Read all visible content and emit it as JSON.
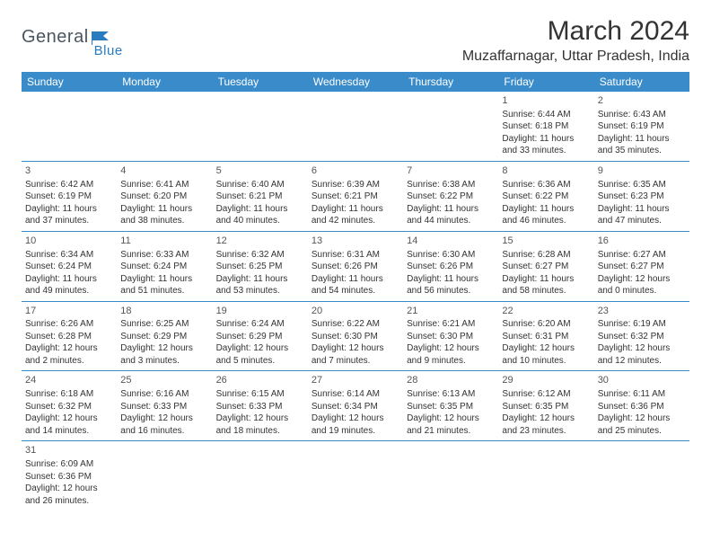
{
  "logo": {
    "text1": "General",
    "text2": "Blue"
  },
  "title": "March 2024",
  "location": "Muzaffarnagar, Uttar Pradesh, India",
  "colors": {
    "header_bg": "#3a8bc9",
    "header_text": "#ffffff",
    "border": "#3a8bc9",
    "logo_gray": "#4a5560",
    "logo_blue": "#2b7bbf",
    "text": "#333333",
    "background": "#ffffff"
  },
  "typography": {
    "title_fontsize": 30,
    "location_fontsize": 16,
    "dayheader_fontsize": 12,
    "cell_fontsize": 10
  },
  "day_headers": [
    "Sunday",
    "Monday",
    "Tuesday",
    "Wednesday",
    "Thursday",
    "Friday",
    "Saturday"
  ],
  "weeks": [
    [
      null,
      null,
      null,
      null,
      null,
      {
        "n": "1",
        "sunrise": "Sunrise: 6:44 AM",
        "sunset": "Sunset: 6:18 PM",
        "day1": "Daylight: 11 hours",
        "day2": "and 33 minutes."
      },
      {
        "n": "2",
        "sunrise": "Sunrise: 6:43 AM",
        "sunset": "Sunset: 6:19 PM",
        "day1": "Daylight: 11 hours",
        "day2": "and 35 minutes."
      }
    ],
    [
      {
        "n": "3",
        "sunrise": "Sunrise: 6:42 AM",
        "sunset": "Sunset: 6:19 PM",
        "day1": "Daylight: 11 hours",
        "day2": "and 37 minutes."
      },
      {
        "n": "4",
        "sunrise": "Sunrise: 6:41 AM",
        "sunset": "Sunset: 6:20 PM",
        "day1": "Daylight: 11 hours",
        "day2": "and 38 minutes."
      },
      {
        "n": "5",
        "sunrise": "Sunrise: 6:40 AM",
        "sunset": "Sunset: 6:21 PM",
        "day1": "Daylight: 11 hours",
        "day2": "and 40 minutes."
      },
      {
        "n": "6",
        "sunrise": "Sunrise: 6:39 AM",
        "sunset": "Sunset: 6:21 PM",
        "day1": "Daylight: 11 hours",
        "day2": "and 42 minutes."
      },
      {
        "n": "7",
        "sunrise": "Sunrise: 6:38 AM",
        "sunset": "Sunset: 6:22 PM",
        "day1": "Daylight: 11 hours",
        "day2": "and 44 minutes."
      },
      {
        "n": "8",
        "sunrise": "Sunrise: 6:36 AM",
        "sunset": "Sunset: 6:22 PM",
        "day1": "Daylight: 11 hours",
        "day2": "and 46 minutes."
      },
      {
        "n": "9",
        "sunrise": "Sunrise: 6:35 AM",
        "sunset": "Sunset: 6:23 PM",
        "day1": "Daylight: 11 hours",
        "day2": "and 47 minutes."
      }
    ],
    [
      {
        "n": "10",
        "sunrise": "Sunrise: 6:34 AM",
        "sunset": "Sunset: 6:24 PM",
        "day1": "Daylight: 11 hours",
        "day2": "and 49 minutes."
      },
      {
        "n": "11",
        "sunrise": "Sunrise: 6:33 AM",
        "sunset": "Sunset: 6:24 PM",
        "day1": "Daylight: 11 hours",
        "day2": "and 51 minutes."
      },
      {
        "n": "12",
        "sunrise": "Sunrise: 6:32 AM",
        "sunset": "Sunset: 6:25 PM",
        "day1": "Daylight: 11 hours",
        "day2": "and 53 minutes."
      },
      {
        "n": "13",
        "sunrise": "Sunrise: 6:31 AM",
        "sunset": "Sunset: 6:26 PM",
        "day1": "Daylight: 11 hours",
        "day2": "and 54 minutes."
      },
      {
        "n": "14",
        "sunrise": "Sunrise: 6:30 AM",
        "sunset": "Sunset: 6:26 PM",
        "day1": "Daylight: 11 hours",
        "day2": "and 56 minutes."
      },
      {
        "n": "15",
        "sunrise": "Sunrise: 6:28 AM",
        "sunset": "Sunset: 6:27 PM",
        "day1": "Daylight: 11 hours",
        "day2": "and 58 minutes."
      },
      {
        "n": "16",
        "sunrise": "Sunrise: 6:27 AM",
        "sunset": "Sunset: 6:27 PM",
        "day1": "Daylight: 12 hours",
        "day2": "and 0 minutes."
      }
    ],
    [
      {
        "n": "17",
        "sunrise": "Sunrise: 6:26 AM",
        "sunset": "Sunset: 6:28 PM",
        "day1": "Daylight: 12 hours",
        "day2": "and 2 minutes."
      },
      {
        "n": "18",
        "sunrise": "Sunrise: 6:25 AM",
        "sunset": "Sunset: 6:29 PM",
        "day1": "Daylight: 12 hours",
        "day2": "and 3 minutes."
      },
      {
        "n": "19",
        "sunrise": "Sunrise: 6:24 AM",
        "sunset": "Sunset: 6:29 PM",
        "day1": "Daylight: 12 hours",
        "day2": "and 5 minutes."
      },
      {
        "n": "20",
        "sunrise": "Sunrise: 6:22 AM",
        "sunset": "Sunset: 6:30 PM",
        "day1": "Daylight: 12 hours",
        "day2": "and 7 minutes."
      },
      {
        "n": "21",
        "sunrise": "Sunrise: 6:21 AM",
        "sunset": "Sunset: 6:30 PM",
        "day1": "Daylight: 12 hours",
        "day2": "and 9 minutes."
      },
      {
        "n": "22",
        "sunrise": "Sunrise: 6:20 AM",
        "sunset": "Sunset: 6:31 PM",
        "day1": "Daylight: 12 hours",
        "day2": "and 10 minutes."
      },
      {
        "n": "23",
        "sunrise": "Sunrise: 6:19 AM",
        "sunset": "Sunset: 6:32 PM",
        "day1": "Daylight: 12 hours",
        "day2": "and 12 minutes."
      }
    ],
    [
      {
        "n": "24",
        "sunrise": "Sunrise: 6:18 AM",
        "sunset": "Sunset: 6:32 PM",
        "day1": "Daylight: 12 hours",
        "day2": "and 14 minutes."
      },
      {
        "n": "25",
        "sunrise": "Sunrise: 6:16 AM",
        "sunset": "Sunset: 6:33 PM",
        "day1": "Daylight: 12 hours",
        "day2": "and 16 minutes."
      },
      {
        "n": "26",
        "sunrise": "Sunrise: 6:15 AM",
        "sunset": "Sunset: 6:33 PM",
        "day1": "Daylight: 12 hours",
        "day2": "and 18 minutes."
      },
      {
        "n": "27",
        "sunrise": "Sunrise: 6:14 AM",
        "sunset": "Sunset: 6:34 PM",
        "day1": "Daylight: 12 hours",
        "day2": "and 19 minutes."
      },
      {
        "n": "28",
        "sunrise": "Sunrise: 6:13 AM",
        "sunset": "Sunset: 6:35 PM",
        "day1": "Daylight: 12 hours",
        "day2": "and 21 minutes."
      },
      {
        "n": "29",
        "sunrise": "Sunrise: 6:12 AM",
        "sunset": "Sunset: 6:35 PM",
        "day1": "Daylight: 12 hours",
        "day2": "and 23 minutes."
      },
      {
        "n": "30",
        "sunrise": "Sunrise: 6:11 AM",
        "sunset": "Sunset: 6:36 PM",
        "day1": "Daylight: 12 hours",
        "day2": "and 25 minutes."
      }
    ],
    [
      {
        "n": "31",
        "sunrise": "Sunrise: 6:09 AM",
        "sunset": "Sunset: 6:36 PM",
        "day1": "Daylight: 12 hours",
        "day2": "and 26 minutes."
      },
      null,
      null,
      null,
      null,
      null,
      null
    ]
  ]
}
